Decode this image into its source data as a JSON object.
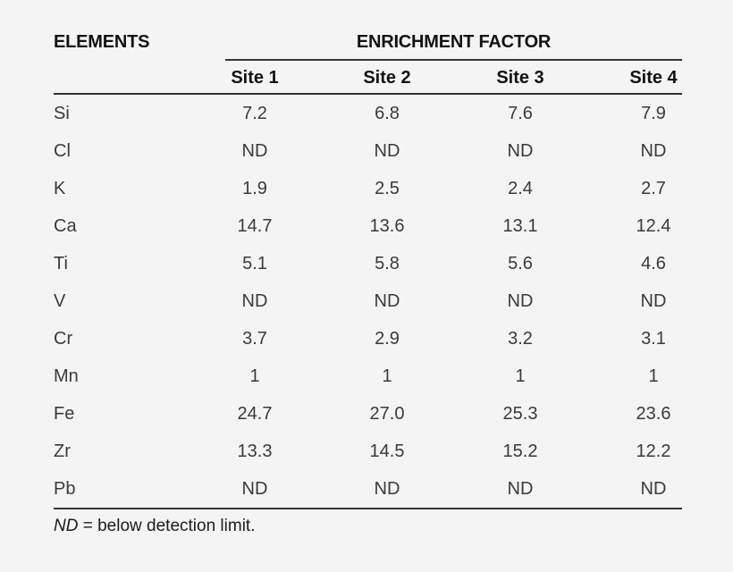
{
  "page": {
    "background": "#f4f4f4",
    "rule_color": "#343434",
    "header_text_color": "#121212",
    "body_text_color": "#3a3a3a"
  },
  "table": {
    "elements_header": "ELEMENTS",
    "group_header": "ENRICHMENT FACTOR",
    "site_headers": [
      "Site 1",
      "Site 2",
      "Site 3",
      "Site 4"
    ],
    "rows": [
      {
        "element": "Si",
        "values": [
          "7.2",
          "6.8",
          "7.6",
          "7.9"
        ]
      },
      {
        "element": "Cl",
        "values": [
          "ND",
          "ND",
          "ND",
          "ND"
        ]
      },
      {
        "element": "K",
        "values": [
          "1.9",
          "2.5",
          "2.4",
          "2.7"
        ]
      },
      {
        "element": "Ca",
        "values": [
          "14.7",
          "13.6",
          "13.1",
          "12.4"
        ]
      },
      {
        "element": "Ti",
        "values": [
          "5.1",
          "5.8",
          "5.6",
          "4.6"
        ]
      },
      {
        "element": "V",
        "values": [
          "ND",
          "ND",
          "ND",
          "ND"
        ]
      },
      {
        "element": "Cr",
        "values": [
          "3.7",
          "2.9",
          "3.2",
          "3.1"
        ]
      },
      {
        "element": "Mn",
        "values": [
          "1",
          "1",
          "1",
          "1"
        ]
      },
      {
        "element": "Fe",
        "values": [
          "24.7",
          "27.0",
          "25.3",
          "23.6"
        ]
      },
      {
        "element": "Zr",
        "values": [
          "13.3",
          "14.5",
          "15.2",
          "12.2"
        ]
      },
      {
        "element": "Pb",
        "values": [
          "ND",
          "ND",
          "ND",
          "ND"
        ]
      }
    ],
    "footnote_abbr": "ND",
    "footnote_rest": " = below detection limit."
  },
  "chart_data": {
    "type": "table",
    "title": "ENRICHMENT FACTOR",
    "columns": [
      "ELEMENTS",
      "Site 1",
      "Site 2",
      "Site 3",
      "Site 4"
    ],
    "rows": [
      [
        "Si",
        "7.2",
        "6.8",
        "7.6",
        "7.9"
      ],
      [
        "Cl",
        "ND",
        "ND",
        "ND",
        "ND"
      ],
      [
        "K",
        "1.9",
        "2.5",
        "2.4",
        "2.7"
      ],
      [
        "Ca",
        "14.7",
        "13.6",
        "13.1",
        "12.4"
      ],
      [
        "Ti",
        "5.1",
        "5.8",
        "5.6",
        "4.6"
      ],
      [
        "V",
        "ND",
        "ND",
        "ND",
        "ND"
      ],
      [
        "Cr",
        "3.7",
        "2.9",
        "3.2",
        "3.1"
      ],
      [
        "Mn",
        "1",
        "1",
        "1",
        "1"
      ],
      [
        "Fe",
        "24.7",
        "27.0",
        "25.3",
        "23.6"
      ],
      [
        "Zr",
        "13.3",
        "14.5",
        "15.2",
        "12.2"
      ],
      [
        "Pb",
        "ND",
        "ND",
        "ND",
        "ND"
      ]
    ],
    "note": "ND = below detection limit."
  }
}
